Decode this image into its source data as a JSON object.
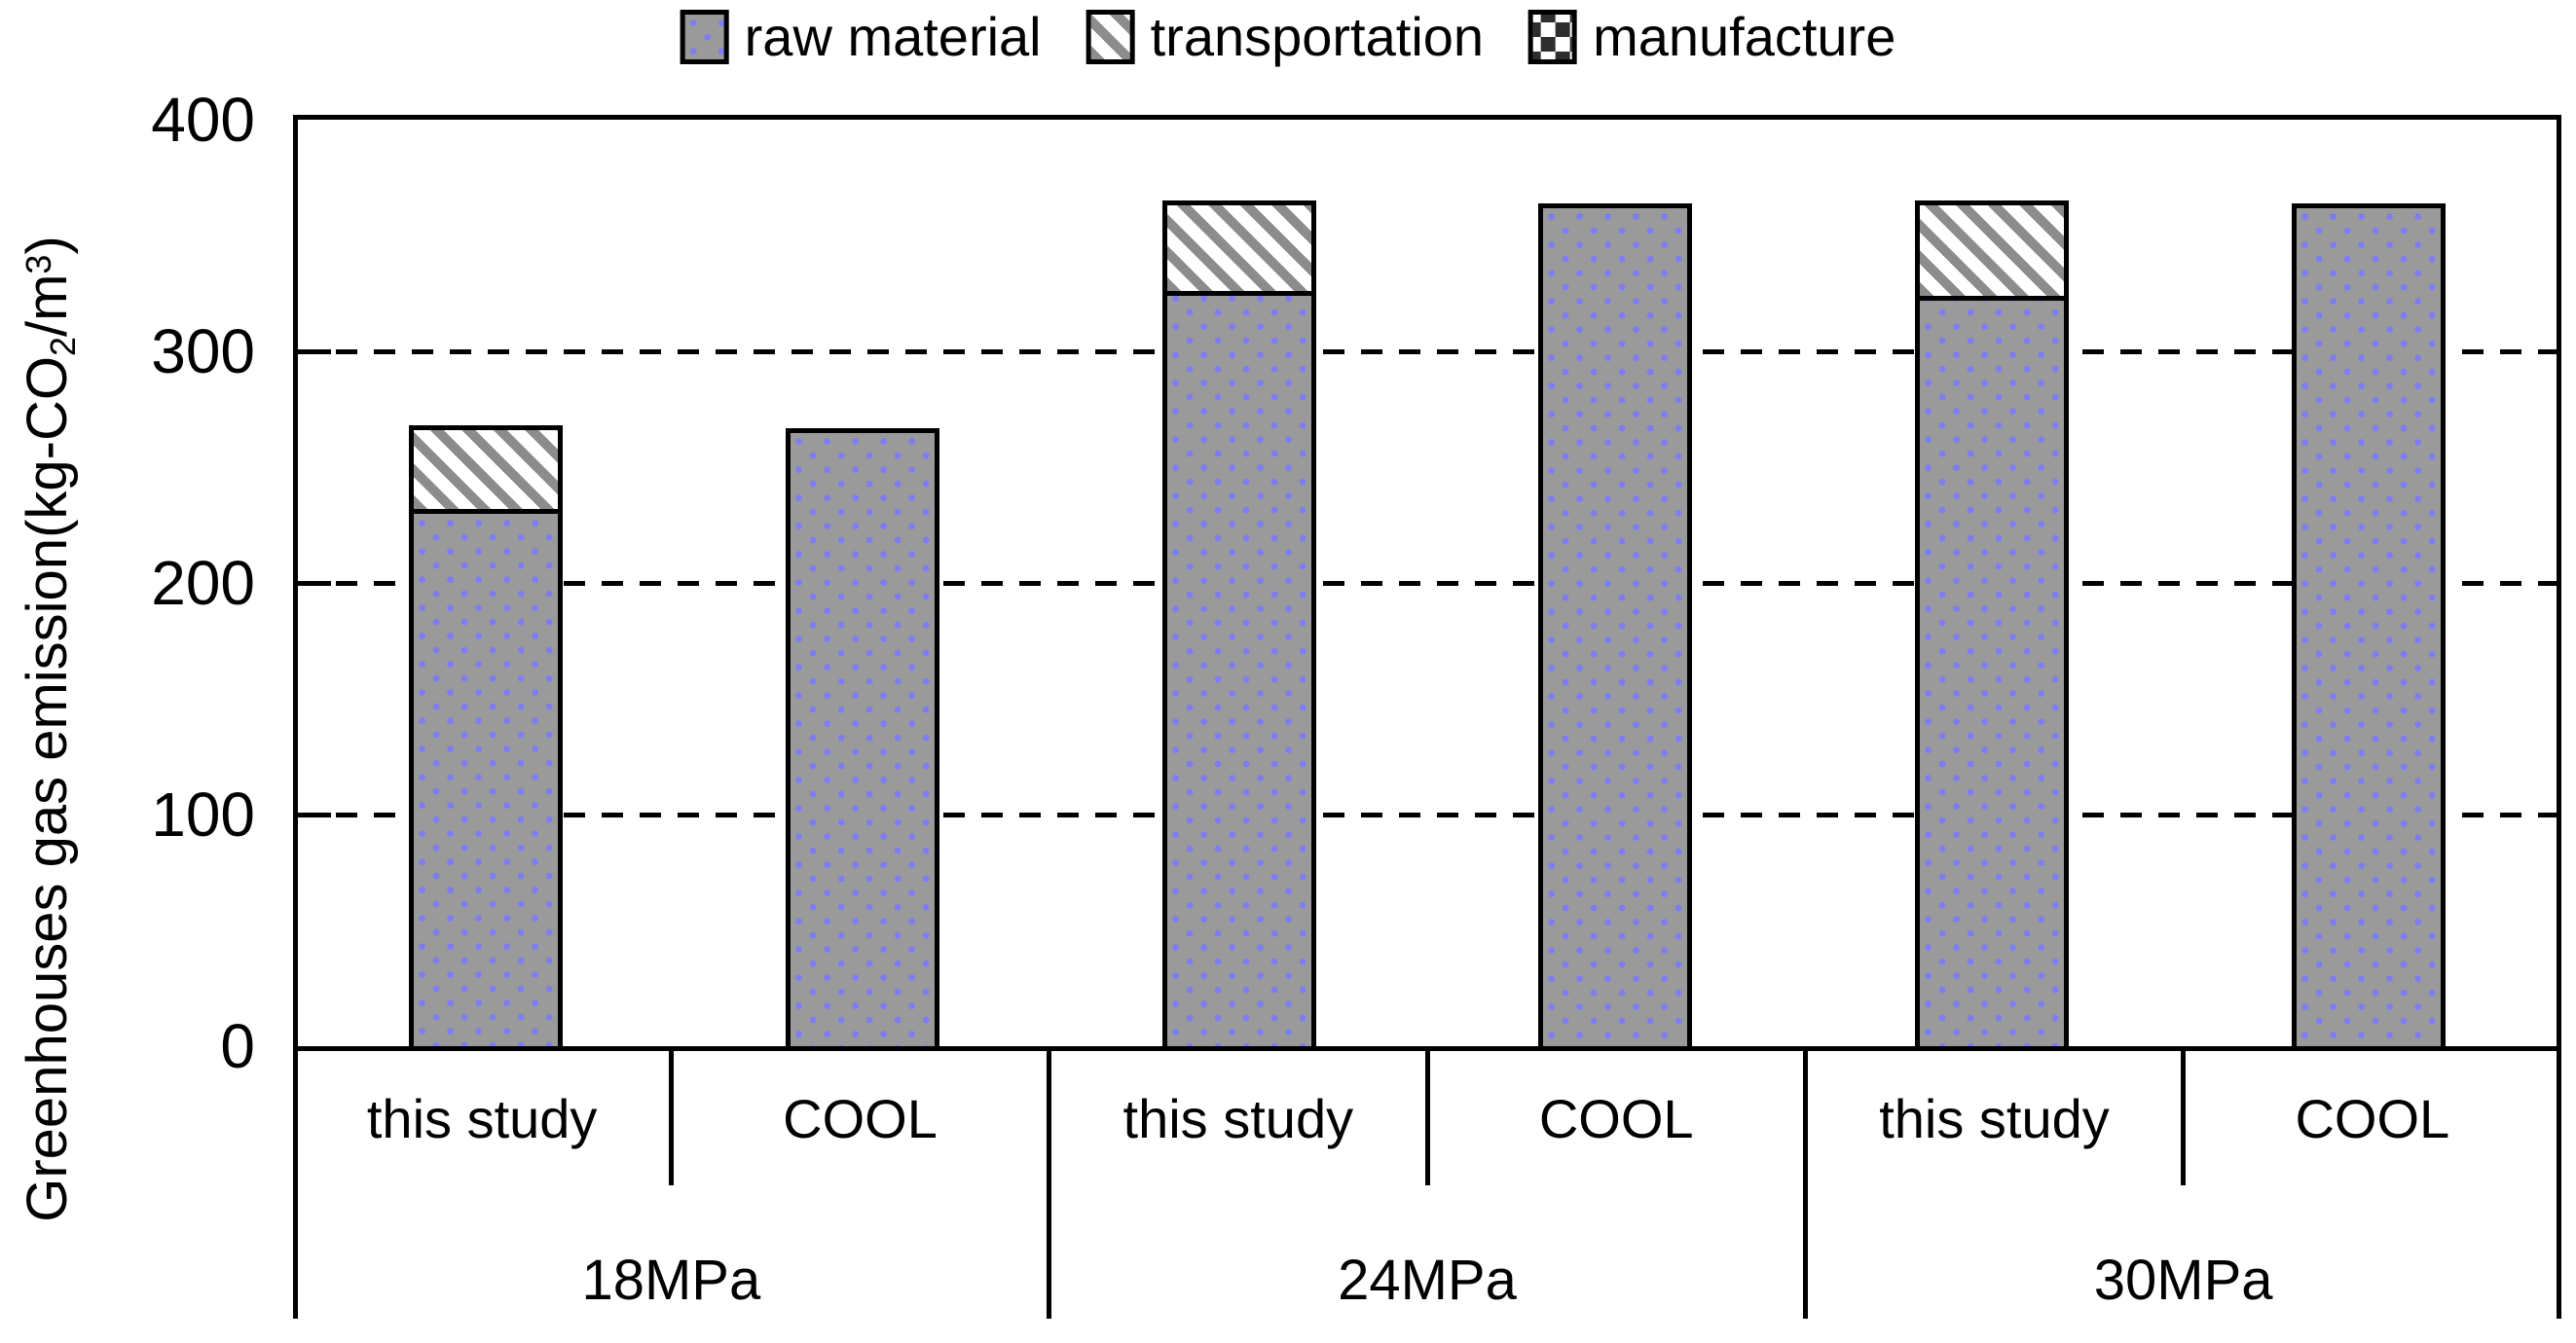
{
  "legend": {
    "items": [
      {
        "label": "raw material",
        "swatch": "raw-material"
      },
      {
        "label": "transportation",
        "swatch": "transportation"
      },
      {
        "label": "manufacture",
        "swatch": "manufacture"
      }
    ]
  },
  "y_axis": {
    "label_pre": "Greenhouses gas emission(kg-CO",
    "label_sub": "2",
    "label_mid": "/m",
    "label_sup": "3",
    "label_post": ")",
    "units": "kg-CO2/m3"
  },
  "chart_data": {
    "type": "bar",
    "stacked": true,
    "title": "",
    "ylabel": "Greenhouses gas emission(kg-CO2/m3)",
    "xlabel": "",
    "ylim": [
      0,
      400
    ],
    "yticks": [
      0,
      100,
      200,
      300,
      400
    ],
    "grid": "horizontal dashed at 100, 200, 300",
    "legend_position": "top",
    "series_names": [
      "raw material",
      "transportation",
      "manufacture"
    ],
    "groups": [
      {
        "label": "18MPa",
        "bars": [
          {
            "label": "this study",
            "raw_material": 232,
            "transportation": 36,
            "manufacture": 0,
            "total": 268
          },
          {
            "label": "COOL",
            "raw_material": 267,
            "transportation": 0,
            "manufacture": 0,
            "total": 267
          }
        ]
      },
      {
        "label": "24MPa",
        "bars": [
          {
            "label": "this study",
            "raw_material": 326,
            "transportation": 39,
            "manufacture": 0,
            "total": 365
          },
          {
            "label": "COOL",
            "raw_material": 364,
            "transportation": 0,
            "manufacture": 0,
            "total": 364
          }
        ]
      },
      {
        "label": "30MPa",
        "bars": [
          {
            "label": "this study",
            "raw_material": 324,
            "transportation": 41,
            "manufacture": 0,
            "total": 365
          },
          {
            "label": "COOL",
            "raw_material": 364,
            "transportation": 0,
            "manufacture": 0,
            "total": 364
          }
        ]
      }
    ]
  },
  "colors": {
    "background": "#ffffff",
    "line_black": "#000000",
    "bar_gray": "#9a9a9a",
    "bar_dot_blue": "#7d7df2",
    "hatch_gray": "#8c8c8c",
    "checker_dark": "#2e2e2e"
  }
}
